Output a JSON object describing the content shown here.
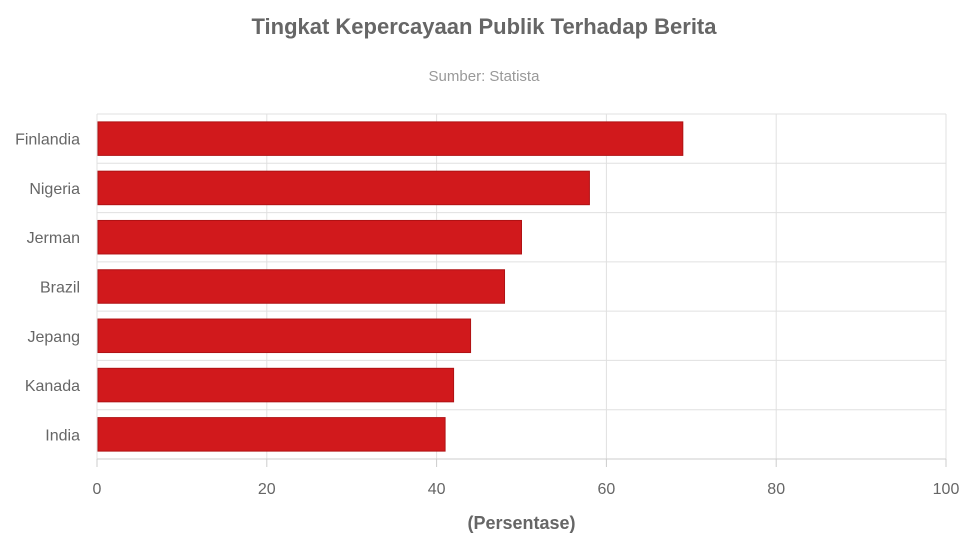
{
  "chart_data": {
    "type": "bar",
    "orientation": "horizontal",
    "title": "Tingkat Kepercayaan Publik Terhadap Berita",
    "subtitle": "Sumber: Statista",
    "categories": [
      "Finlandia",
      "Nigeria",
      "Jerman",
      "Brazil",
      "Jepang",
      "Kanada",
      "India"
    ],
    "values": [
      69,
      58,
      50,
      48,
      44,
      42,
      41
    ],
    "xlabel": "(Persentase)",
    "ylabel": "",
    "xlim": [
      0,
      100
    ],
    "xticks": [
      "0",
      "20",
      "40",
      "60",
      "80",
      "100"
    ],
    "grid": true,
    "colors": {
      "bar": "#d1191c",
      "bar_border": "#b01214",
      "grid": "#e0e0e0",
      "axis": "#cccccc"
    }
  }
}
